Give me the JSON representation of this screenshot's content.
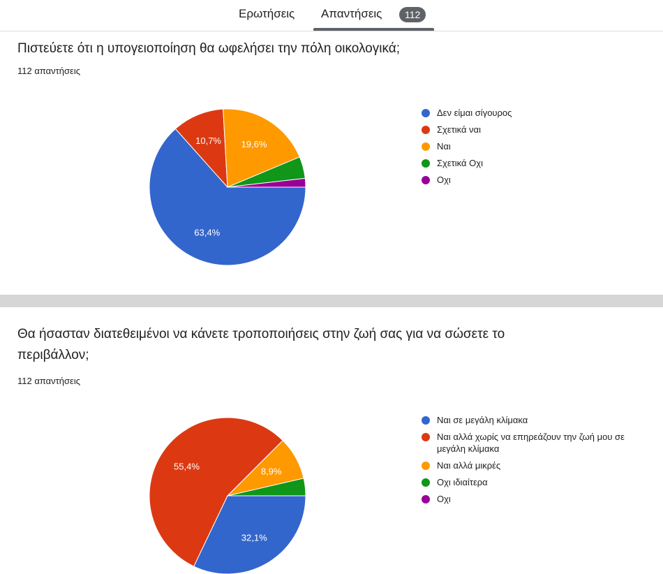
{
  "tabs": {
    "questions_label": "Ερωτήσεις",
    "answers_label": "Απαντήσεις",
    "answers_count": "112"
  },
  "charts_meta": [
    {
      "title": "Πιστεύετε ότι η υπογειοποίηση θα ωφελήσει την πόλη οικολογικά;",
      "count": "112 απαντήσεις"
    },
    {
      "title": "Θα ήσασταν διατεθειμένοι να κάνετε τροποποιήσεις στην ζωή σας για να σώσετε το περιβάλλον;",
      "count": "112 απαντήσεις"
    }
  ],
  "chart_data": [
    {
      "type": "pie",
      "title": "Πιστεύετε ότι η υπογειοποίηση θα ωφελήσει την πόλη οικολογικά;",
      "total": 112,
      "categories": [
        "Δεν είμαι σίγουρος",
        "Σχετικά ναι",
        "Ναι",
        "Σχετικά Οχι",
        "Οχι"
      ],
      "values": [
        63.4,
        10.7,
        19.6,
        4.5,
        1.8
      ],
      "labels": [
        "63,4%",
        "10,7%",
        "19,6%",
        "",
        ""
      ],
      "colors": [
        "#3366cc",
        "#dc3912",
        "#ff9900",
        "#109618",
        "#990099"
      ],
      "legend_position": "right"
    },
    {
      "type": "pie",
      "title": "Θα ήσασταν διατεθειμένοι να κάνετε τροποποιήσεις στην ζωή σας για να σώσετε το περιβάλλον;",
      "total": 112,
      "categories": [
        "Ναι σε μεγάλη κλίμακα",
        "Ναι αλλά χωρίς να επηρεάζουν την ζωή μου σε μεγάλη κλίμακα",
        "Ναι αλλά μικρές",
        "Οχι ιδιαίτερα",
        "Οχι"
      ],
      "values": [
        32.1,
        55.4,
        8.9,
        3.6,
        0
      ],
      "labels": [
        "32,1%",
        "55,4%",
        "8,9%",
        "",
        ""
      ],
      "colors": [
        "#3366cc",
        "#dc3912",
        "#ff9900",
        "#109618",
        "#990099"
      ],
      "legend_position": "right"
    }
  ]
}
